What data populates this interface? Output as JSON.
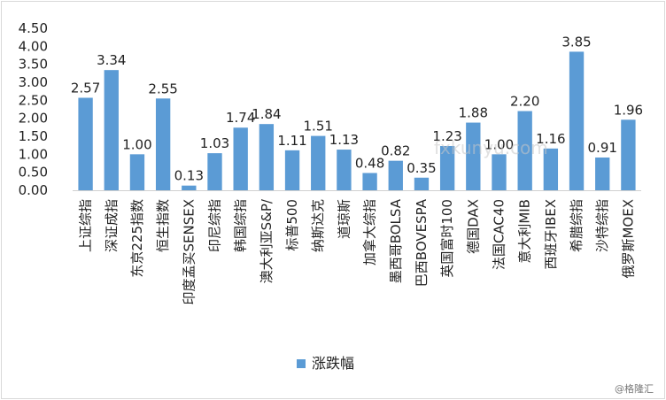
{
  "chart_data": {
    "type": "bar",
    "title": "",
    "xlabel": "",
    "ylabel": "",
    "ylim": [
      0,
      4.5
    ],
    "ytick_labels": [
      "0.00",
      "0.50",
      "1.00",
      "1.50",
      "2.00",
      "2.50",
      "3.00",
      "3.50",
      "4.00",
      "4.50"
    ],
    "grid": false,
    "legend_position": "bottom",
    "categories": [
      "上证综指",
      "深证成指",
      "东京225指数",
      "恒生指数",
      "印度孟买SENSEX",
      "印尼综指",
      "韩国综指",
      "澳大利亚S&P/",
      "标普500",
      "纳斯达克",
      "道琼斯",
      "加拿大综指",
      "墨西哥BOLSA",
      "巴西BOVESPA",
      "英国富时100",
      "德国DAX",
      "法国CAC40",
      "意大利MIB",
      "西班牙IBEX",
      "希腊综指",
      "沙特综指",
      "俄罗斯MOEX"
    ],
    "series": [
      {
        "name": "涨跌幅",
        "color": "#5b9bd5",
        "values": [
          2.57,
          3.34,
          1.0,
          2.55,
          0.13,
          1.03,
          1.74,
          1.84,
          1.11,
          1.51,
          1.13,
          0.48,
          0.82,
          0.35,
          1.23,
          1.88,
          1.0,
          2.2,
          1.16,
          3.85,
          0.91,
          1.96
        ],
        "labels": [
          "2.57",
          "3.34",
          "1.00",
          "2.55",
          "0.13",
          "1.03",
          "1.74",
          "1.84",
          "1.11",
          "1.51",
          "1.13",
          "0.48",
          "0.82",
          "0.35",
          "1.23",
          "1.88",
          "1.00",
          "2.20",
          "1.16",
          "3.85",
          "0.91",
          "1.96"
        ]
      }
    ]
  },
  "watermark": "fxkunyu.com",
  "credit": "@格隆汇"
}
